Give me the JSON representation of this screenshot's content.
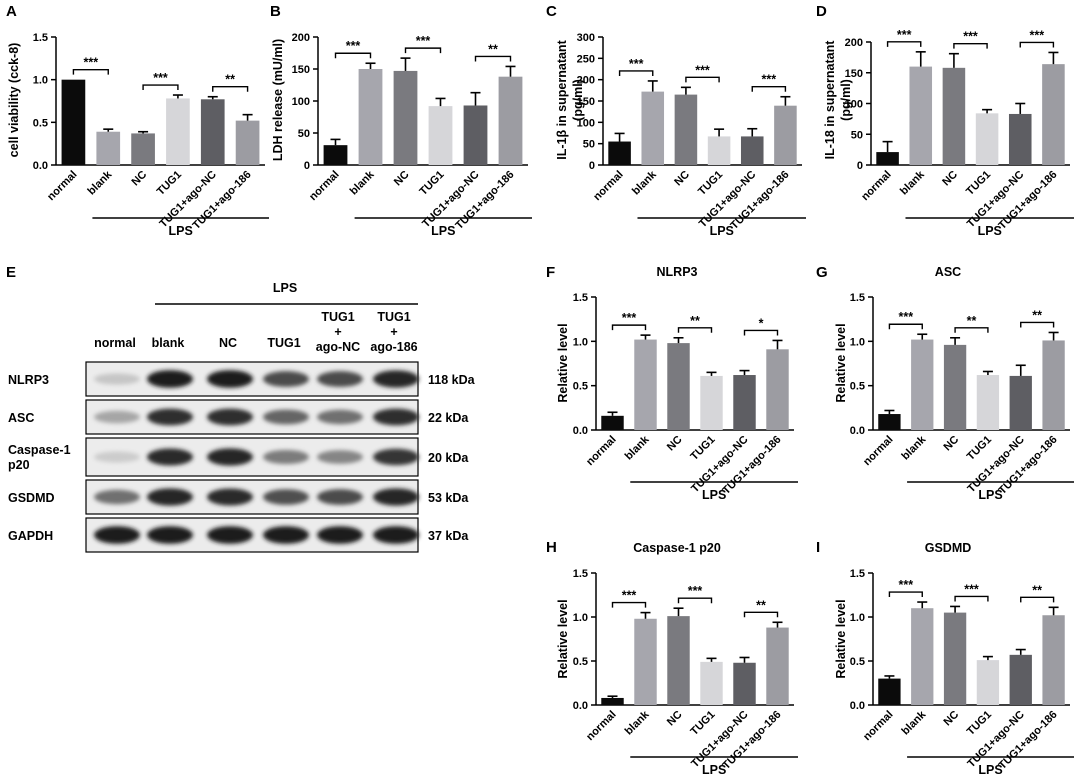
{
  "lps_label": "LPS",
  "panels": [
    {
      "letter": "A",
      "ylabel": "cell viability (cck-8)",
      "title": "",
      "ticks": [
        "0.0",
        "0.5",
        "1.0",
        "1.5"
      ]
    },
    {
      "letter": "B",
      "ylabel": "LDH release (mU/ml)",
      "title": "",
      "ticks": [
        "0",
        "50",
        "100",
        "150",
        "200"
      ]
    },
    {
      "letter": "C",
      "ylabel": "IL-1β in supernatant (pg/ml)",
      "ylabel_line1": "IL-1β in supernatant",
      "ylabel_line2": "(pg/ml)",
      "title": "",
      "ticks": [
        "0",
        "50",
        "100",
        "150",
        "200",
        "250",
        "300"
      ]
    },
    {
      "letter": "D",
      "ylabel": "IL-18 in supernatant (pg/ml)",
      "ylabel_line1": "IL-18 in supernatant",
      "ylabel_line2": "(pg/ml)",
      "title": "",
      "ticks": [
        "0",
        "50",
        "100",
        "150",
        "200"
      ]
    },
    {
      "letter": "F",
      "ylabel": "Relative level",
      "title": "NLRP3",
      "ticks": [
        "0.0",
        "0.5",
        "1.0",
        "1.5"
      ]
    },
    {
      "letter": "G",
      "ylabel": "Relative level",
      "title": "ASC",
      "ticks": [
        "0.0",
        "0.5",
        "1.0",
        "1.5"
      ]
    },
    {
      "letter": "H",
      "ylabel": "Relative level",
      "title": "Caspase-1 p20",
      "ticks": [
        "0.0",
        "0.5",
        "1.0",
        "1.5"
      ]
    },
    {
      "letter": "I",
      "ylabel": "Relative level",
      "title": "GSDMD",
      "ticks": [
        "0.0",
        "0.5",
        "1.0",
        "1.5"
      ]
    }
  ],
  "chart_data": [
    {
      "type": "bar",
      "panel": "A",
      "categories": [
        "normal",
        "blank",
        "NC",
        "TUG1",
        "TUG1+ago-NC",
        "TUG1+ago-186"
      ],
      "values": [
        1.0,
        0.39,
        0.37,
        0.78,
        0.77,
        0.52
      ],
      "errors": [
        0,
        0.03,
        0.02,
        0.04,
        0.03,
        0.07
      ],
      "ylabel": "cell viability (cck-8)",
      "ylim": [
        0,
        1.5
      ],
      "group_label": "LPS",
      "significance": [
        {
          "between": [
            "normal",
            "blank"
          ],
          "label": "***"
        },
        {
          "between": [
            "NC",
            "TUG1"
          ],
          "label": "***"
        },
        {
          "between": [
            "TUG1+ago-NC",
            "TUG1+ago-186"
          ],
          "label": "**"
        }
      ]
    },
    {
      "type": "bar",
      "panel": "B",
      "categories": [
        "normal",
        "blank",
        "NC",
        "TUG1",
        "TUG1+ago-NC",
        "TUG1+ago-186"
      ],
      "values": [
        31,
        150,
        147,
        92,
        93,
        138
      ],
      "errors": [
        9,
        9,
        20,
        12,
        20,
        16
      ],
      "ylabel": "LDH release (mU/ml)",
      "ylim": [
        0,
        200
      ],
      "group_label": "LPS",
      "significance": [
        {
          "between": [
            "normal",
            "blank"
          ],
          "label": "***"
        },
        {
          "between": [
            "NC",
            "TUG1"
          ],
          "label": "***"
        },
        {
          "between": [
            "TUG1+ago-NC",
            "TUG1+ago-186"
          ],
          "label": "**"
        }
      ]
    },
    {
      "type": "bar",
      "panel": "C",
      "categories": [
        "normal",
        "blank",
        "NC",
        "TUG1",
        "TUG1+ago-NC",
        "TUG1+ago-186"
      ],
      "values": [
        55,
        172,
        165,
        67,
        67,
        139
      ],
      "errors": [
        19,
        25,
        17,
        17,
        18,
        21
      ],
      "ylabel": "IL-1β in supernatant (pg/ml)",
      "ylim": [
        0,
        300
      ],
      "group_label": "LPS",
      "significance": [
        {
          "between": [
            "normal",
            "blank"
          ],
          "label": "***"
        },
        {
          "between": [
            "NC",
            "TUG1"
          ],
          "label": "***"
        },
        {
          "between": [
            "TUG1+ago-NC",
            "TUG1+ago-186"
          ],
          "label": "***"
        }
      ]
    },
    {
      "type": "bar",
      "panel": "D",
      "categories": [
        "normal",
        "blank",
        "NC",
        "TUG1",
        "TUG1+ago-NC",
        "TUG1+ago-186"
      ],
      "values": [
        21,
        160,
        158,
        84,
        83,
        164
      ],
      "errors": [
        17,
        24,
        23,
        6,
        17,
        19
      ],
      "ylabel": "IL-18 in supernatant (pg/ml)",
      "ylim": [
        0,
        200
      ],
      "group_label": "LPS",
      "significance": [
        {
          "between": [
            "normal",
            "blank"
          ],
          "label": "***"
        },
        {
          "between": [
            "NC",
            "TUG1"
          ],
          "label": "***"
        },
        {
          "between": [
            "TUG1+ago-NC",
            "TUG1+ago-186"
          ],
          "label": "***"
        }
      ]
    },
    {
      "type": "bar",
      "panel": "F",
      "title": "NLRP3",
      "categories": [
        "normal",
        "blank",
        "NC",
        "TUG1",
        "TUG1+ago-NC",
        "TUG1+ago-186"
      ],
      "values": [
        0.16,
        1.02,
        0.98,
        0.61,
        0.62,
        0.91
      ],
      "errors": [
        0.04,
        0.05,
        0.06,
        0.04,
        0.05,
        0.1
      ],
      "ylabel": "Relative level",
      "ylim": [
        0,
        1.5
      ],
      "group_label": "LPS",
      "significance": [
        {
          "between": [
            "normal",
            "blank"
          ],
          "label": "***"
        },
        {
          "between": [
            "NC",
            "TUG1"
          ],
          "label": "**"
        },
        {
          "between": [
            "TUG1+ago-NC",
            "TUG1+ago-186"
          ],
          "label": "*"
        }
      ]
    },
    {
      "type": "bar",
      "panel": "G",
      "title": "ASC",
      "categories": [
        "normal",
        "blank",
        "NC",
        "TUG1",
        "TUG1+ago-NC",
        "TUG1+ago-186"
      ],
      "values": [
        0.18,
        1.02,
        0.96,
        0.62,
        0.61,
        1.01
      ],
      "errors": [
        0.04,
        0.06,
        0.08,
        0.04,
        0.12,
        0.09
      ],
      "ylabel": "Relative level",
      "ylim": [
        0,
        1.5
      ],
      "group_label": "LPS",
      "significance": [
        {
          "between": [
            "normal",
            "blank"
          ],
          "label": "***"
        },
        {
          "between": [
            "NC",
            "TUG1"
          ],
          "label": "**"
        },
        {
          "between": [
            "TUG1+ago-NC",
            "TUG1+ago-186"
          ],
          "label": "**"
        }
      ]
    },
    {
      "type": "bar",
      "panel": "H",
      "title": "Caspase-1 p20",
      "categories": [
        "normal",
        "blank",
        "NC",
        "TUG1",
        "TUG1+ago-NC",
        "TUG1+ago-186"
      ],
      "values": [
        0.08,
        0.98,
        1.01,
        0.49,
        0.48,
        0.88
      ],
      "errors": [
        0.02,
        0.07,
        0.09,
        0.04,
        0.06,
        0.06
      ],
      "ylabel": "Relative level",
      "ylim": [
        0,
        1.5
      ],
      "group_label": "LPS",
      "significance": [
        {
          "between": [
            "normal",
            "blank"
          ],
          "label": "***"
        },
        {
          "between": [
            "NC",
            "TUG1"
          ],
          "label": "***"
        },
        {
          "between": [
            "TUG1+ago-NC",
            "TUG1+ago-186"
          ],
          "label": "**"
        }
      ]
    },
    {
      "type": "bar",
      "panel": "I",
      "title": "GSDMD",
      "categories": [
        "normal",
        "blank",
        "NC",
        "TUG1",
        "TUG1+ago-NC",
        "TUG1+ago-186"
      ],
      "values": [
        0.3,
        1.1,
        1.05,
        0.51,
        0.57,
        1.02
      ],
      "errors": [
        0.03,
        0.07,
        0.07,
        0.04,
        0.06,
        0.09
      ],
      "ylabel": "Relative level",
      "ylim": [
        0,
        1.5
      ],
      "group_label": "LPS",
      "significance": [
        {
          "between": [
            "normal",
            "blank"
          ],
          "label": "***"
        },
        {
          "between": [
            "NC",
            "TUG1"
          ],
          "label": "***"
        },
        {
          "between": [
            "TUG1+ago-NC",
            "TUG1+ago-186"
          ],
          "label": "**"
        }
      ]
    }
  ],
  "bar_colors": [
    "#0b0b0b",
    "#a6a6ad",
    "#7a7a7f",
    "#d6d6d9",
    "#5e5e63",
    "#9c9ca2"
  ],
  "western_blot": {
    "letter": "E",
    "lps_label": "LPS",
    "lanes": [
      "normal",
      "blank",
      "NC",
      "TUG1",
      "TUG1\n+\nago-NC",
      "TUG1\n+\nago-186"
    ],
    "lane_lines": [
      [
        "normal"
      ],
      [
        "blank"
      ],
      [
        "NC"
      ],
      [
        "TUG1"
      ],
      [
        "TUG1",
        "+",
        "ago-NC"
      ],
      [
        "TUG1",
        "+",
        "ago-186"
      ]
    ],
    "rows": [
      {
        "protein": "NLRP3",
        "protein_lines": [
          "NLRP3"
        ],
        "size": "118 kDa",
        "intensity": [
          0.15,
          0.95,
          0.95,
          0.72,
          0.72,
          0.9
        ]
      },
      {
        "protein": "ASC",
        "protein_lines": [
          "ASC"
        ],
        "size": "22 kDa",
        "intensity": [
          0.3,
          0.85,
          0.85,
          0.6,
          0.55,
          0.85
        ]
      },
      {
        "protein": "Caspase-1 p20",
        "protein_lines": [
          "Caspase-1",
          "p20"
        ],
        "size": "20 kDa",
        "intensity": [
          0.12,
          0.88,
          0.9,
          0.5,
          0.45,
          0.82
        ]
      },
      {
        "protein": "GSDMD",
        "protein_lines": [
          "GSDMD"
        ],
        "size": "53 kDa",
        "intensity": [
          0.55,
          0.9,
          0.88,
          0.7,
          0.72,
          0.9
        ]
      },
      {
        "protein": "GAPDH",
        "protein_lines": [
          "GAPDH"
        ],
        "size": "37 kDa",
        "intensity": [
          0.95,
          0.95,
          0.95,
          0.95,
          0.95,
          0.95
        ]
      }
    ]
  }
}
